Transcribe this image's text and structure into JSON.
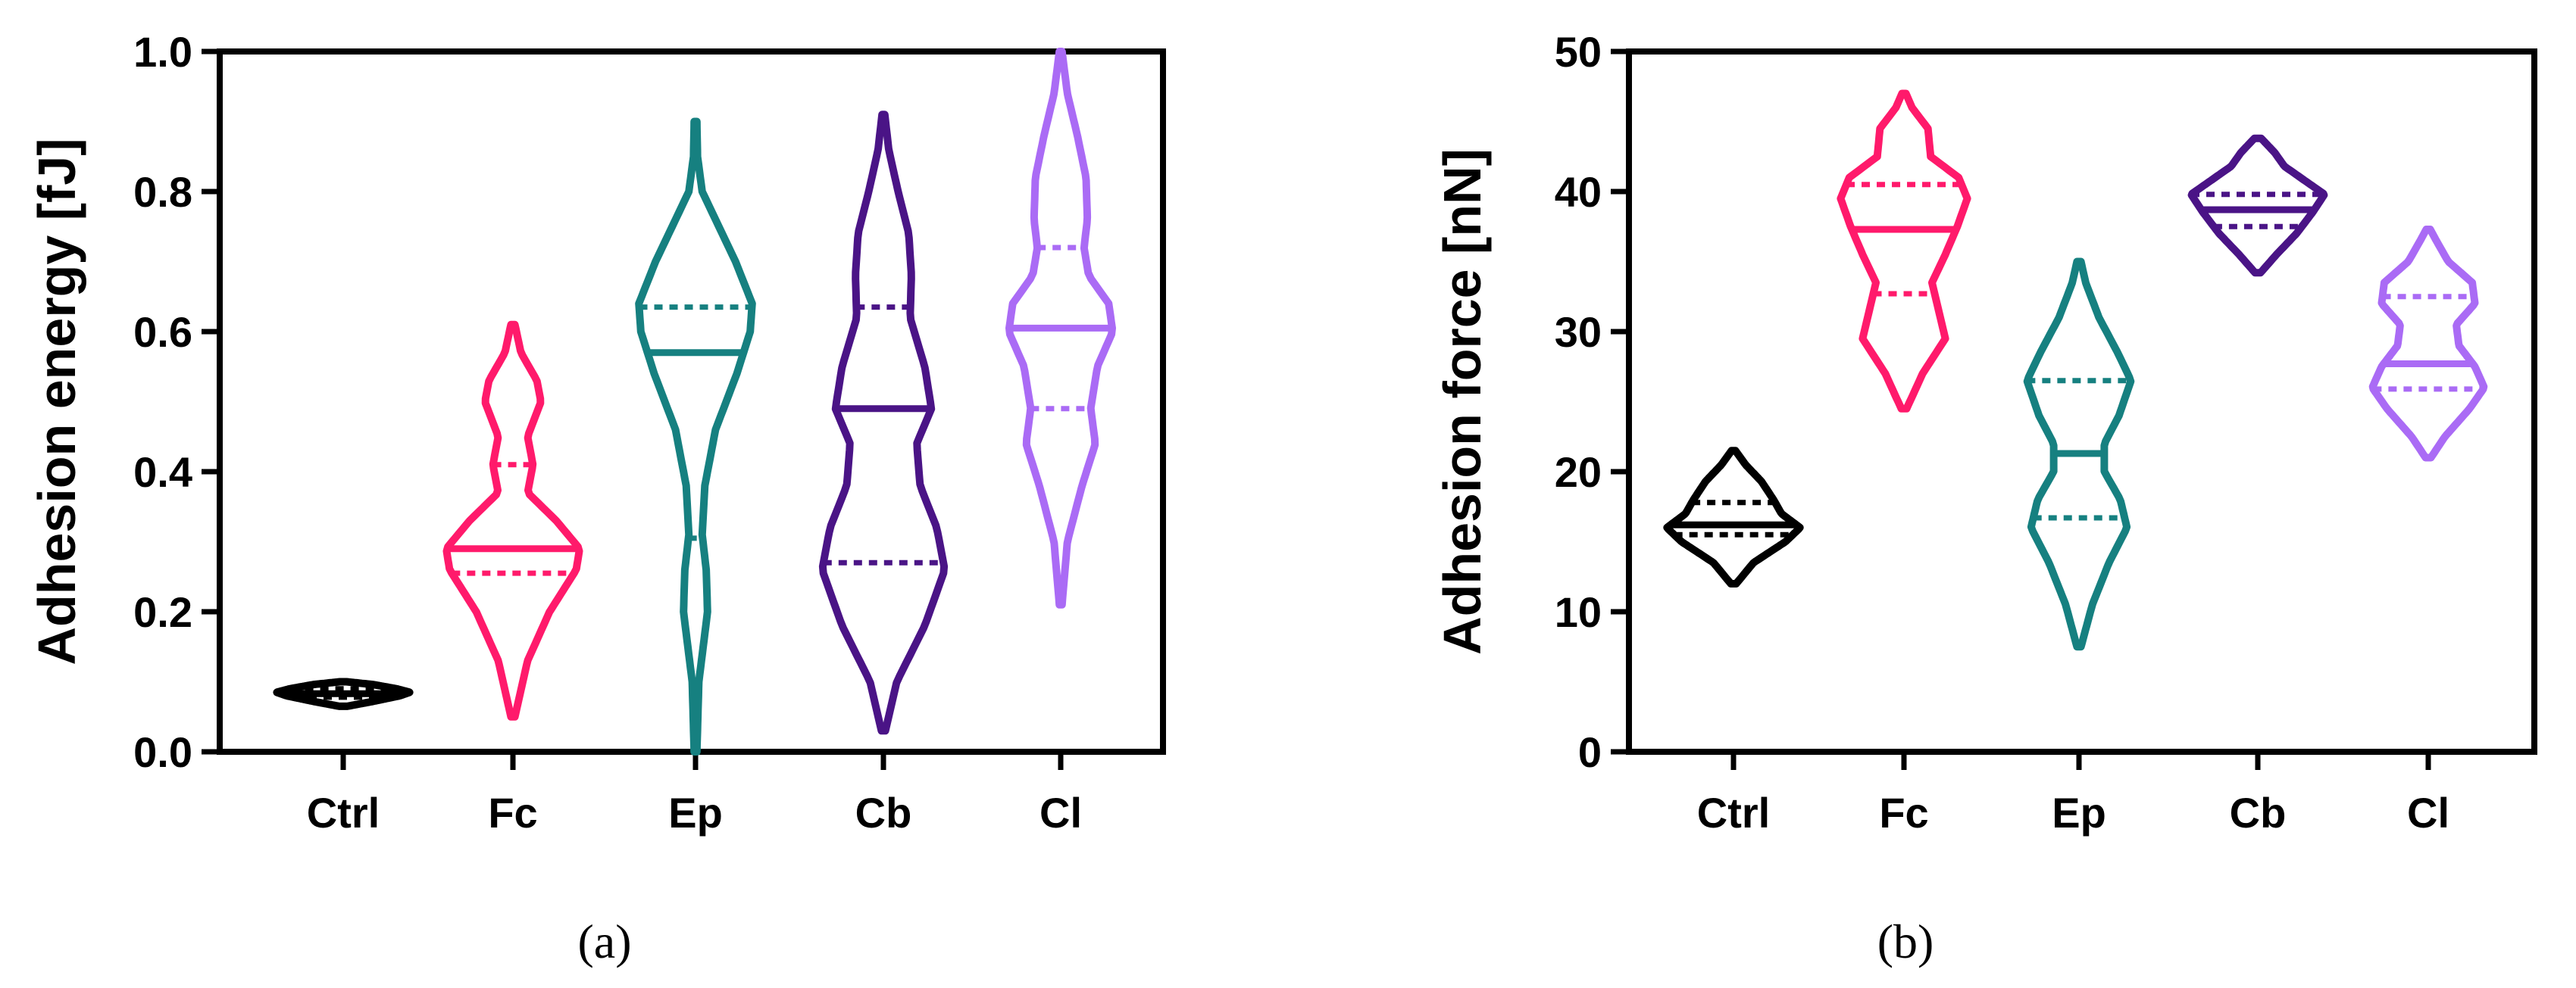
{
  "panel_labels": [
    "(a)",
    "(b)"
  ],
  "chart_data": [
    {
      "type": "violin",
      "panel": "(a)",
      "title": "",
      "xlabel": "",
      "ylabel": "Adhesion energy [fJ]",
      "ylim": [
        0,
        1.0
      ],
      "yticks": [
        "0.0",
        "0.2",
        "0.4",
        "0.6",
        "0.8",
        "1.0"
      ],
      "grid": false,
      "categories": [
        "Ctrl",
        "Fc",
        "Ep",
        "Cb",
        "Cl"
      ],
      "series": [
        {
          "category": "Ctrl",
          "color": "#000000",
          "min": 0.065,
          "q1": 0.078,
          "median": 0.083,
          "q3": 0.09,
          "max": 0.1,
          "profile": [
            [
              0.065,
              0.06
            ],
            [
              0.072,
              0.45
            ],
            [
              0.08,
              0.85
            ],
            [
              0.085,
              1.0
            ],
            [
              0.09,
              0.8
            ],
            [
              0.096,
              0.45
            ],
            [
              0.1,
              0.05
            ]
          ]
        },
        {
          "category": "Fc",
          "color": "#ff1a6b",
          "min": 0.05,
          "q1": 0.255,
          "median": 0.29,
          "q3": 0.41,
          "max": 0.61,
          "profile": [
            [
              0.05,
              0.03
            ],
            [
              0.13,
              0.22
            ],
            [
              0.2,
              0.55
            ],
            [
              0.26,
              0.95
            ],
            [
              0.29,
              1.0
            ],
            [
              0.33,
              0.65
            ],
            [
              0.37,
              0.22
            ],
            [
              0.41,
              0.3
            ],
            [
              0.45,
              0.22
            ],
            [
              0.5,
              0.42
            ],
            [
              0.53,
              0.36
            ],
            [
              0.57,
              0.12
            ],
            [
              0.61,
              0.03
            ]
          ]
        },
        {
          "category": "Ep",
          "color": "#168080",
          "min": 0.0,
          "q1": 0.305,
          "median": 0.57,
          "q3": 0.635,
          "max": 0.9,
          "profile": [
            [
              0.0,
              0.02
            ],
            [
              0.1,
              0.05
            ],
            [
              0.2,
              0.18
            ],
            [
              0.26,
              0.16
            ],
            [
              0.31,
              0.1
            ],
            [
              0.38,
              0.14
            ],
            [
              0.46,
              0.3
            ],
            [
              0.54,
              0.62
            ],
            [
              0.6,
              0.82
            ],
            [
              0.64,
              0.85
            ],
            [
              0.7,
              0.6
            ],
            [
              0.76,
              0.3
            ],
            [
              0.8,
              0.1
            ],
            [
              0.85,
              0.03
            ],
            [
              0.9,
              0.02
            ]
          ]
        },
        {
          "category": "Cb",
          "color": "#4a1486",
          "min": 0.03,
          "q1": 0.27,
          "median": 0.49,
          "q3": 0.635,
          "max": 0.91,
          "profile": [
            [
              0.03,
              0.03
            ],
            [
              0.1,
              0.2
            ],
            [
              0.18,
              0.62
            ],
            [
              0.26,
              0.92
            ],
            [
              0.32,
              0.8
            ],
            [
              0.38,
              0.55
            ],
            [
              0.44,
              0.5
            ],
            [
              0.49,
              0.72
            ],
            [
              0.55,
              0.62
            ],
            [
              0.62,
              0.4
            ],
            [
              0.68,
              0.42
            ],
            [
              0.74,
              0.38
            ],
            [
              0.8,
              0.22
            ],
            [
              0.86,
              0.08
            ],
            [
              0.91,
              0.02
            ]
          ]
        },
        {
          "category": "Cl",
          "color": "#aa6bf5",
          "min": 0.21,
          "q1": 0.49,
          "median": 0.605,
          "q3": 0.72,
          "max": 1.0,
          "profile": [
            [
              0.21,
              0.02
            ],
            [
              0.3,
              0.1
            ],
            [
              0.38,
              0.32
            ],
            [
              0.44,
              0.52
            ],
            [
              0.49,
              0.45
            ],
            [
              0.55,
              0.55
            ],
            [
              0.6,
              0.78
            ],
            [
              0.64,
              0.72
            ],
            [
              0.68,
              0.42
            ],
            [
              0.72,
              0.35
            ],
            [
              0.76,
              0.4
            ],
            [
              0.82,
              0.38
            ],
            [
              0.88,
              0.25
            ],
            [
              0.94,
              0.1
            ],
            [
              1.0,
              0.02
            ]
          ]
        }
      ]
    },
    {
      "type": "violin",
      "panel": "(b)",
      "title": "",
      "xlabel": "",
      "ylabel": "Adhesion force [nN]",
      "ylim": [
        0,
        50
      ],
      "yticks": [
        "0",
        "10",
        "20",
        "30",
        "40",
        "50"
      ],
      "grid": false,
      "categories": [
        "Ctrl",
        "Fc",
        "Ep",
        "Cb",
        "Cl"
      ],
      "series": [
        {
          "category": "Ctrl",
          "color": "#000000",
          "min": 12,
          "q1": 15.5,
          "median": 16.2,
          "q3": 17.8,
          "max": 21.5,
          "profile": [
            [
              12,
              0.04
            ],
            [
              13.5,
              0.3
            ],
            [
              15,
              0.78
            ],
            [
              16,
              1.0
            ],
            [
              17,
              0.72
            ],
            [
              18,
              0.6
            ],
            [
              19.3,
              0.42
            ],
            [
              20.5,
              0.18
            ],
            [
              21.5,
              0.03
            ]
          ]
        },
        {
          "category": "Fc",
          "color": "#ff1a6b",
          "min": 24.5,
          "q1": 32.7,
          "median": 37.3,
          "q3": 40.5,
          "max": 47,
          "profile": [
            [
              24.5,
              0.04
            ],
            [
              27,
              0.28
            ],
            [
              29.5,
              0.62
            ],
            [
              31.5,
              0.52
            ],
            [
              33.5,
              0.42
            ],
            [
              35.5,
              0.62
            ],
            [
              37.5,
              0.8
            ],
            [
              39.5,
              0.95
            ],
            [
              41,
              0.82
            ],
            [
              42.5,
              0.4
            ],
            [
              44.5,
              0.36
            ],
            [
              46,
              0.12
            ],
            [
              47,
              0.03
            ]
          ]
        },
        {
          "category": "Ep",
          "color": "#168080",
          "min": 7.5,
          "q1": 16.7,
          "median": 21.3,
          "q3": 26.5,
          "max": 35,
          "profile": [
            [
              7.5,
              0.03
            ],
            [
              10.5,
              0.2
            ],
            [
              13.5,
              0.45
            ],
            [
              16,
              0.72
            ],
            [
              18,
              0.62
            ],
            [
              20,
              0.38
            ],
            [
              22,
              0.38
            ],
            [
              24,
              0.6
            ],
            [
              26.5,
              0.78
            ],
            [
              28.5,
              0.58
            ],
            [
              31,
              0.3
            ],
            [
              33.5,
              0.1
            ],
            [
              35,
              0.03
            ]
          ]
        },
        {
          "category": "Cb",
          "color": "#4a1486",
          "min": 34.2,
          "q1": 37.5,
          "median": 38.7,
          "q3": 39.8,
          "max": 43.8,
          "profile": [
            [
              34.2,
              0.04
            ],
            [
              35.5,
              0.28
            ],
            [
              37,
              0.58
            ],
            [
              38.5,
              0.82
            ],
            [
              39.8,
              1.0
            ],
            [
              40.8,
              0.7
            ],
            [
              41.8,
              0.4
            ],
            [
              42.8,
              0.25
            ],
            [
              43.8,
              0.05
            ]
          ]
        },
        {
          "category": "Cl",
          "color": "#aa6bf5",
          "min": 21,
          "q1": 25.9,
          "median": 27.7,
          "q3": 32.5,
          "max": 37.3,
          "profile": [
            [
              21,
              0.04
            ],
            [
              22.5,
              0.25
            ],
            [
              24.5,
              0.62
            ],
            [
              26,
              0.84
            ],
            [
              27.5,
              0.7
            ],
            [
              29,
              0.46
            ],
            [
              30.5,
              0.42
            ],
            [
              32,
              0.7
            ],
            [
              33.5,
              0.66
            ],
            [
              35,
              0.3
            ],
            [
              36.5,
              0.12
            ],
            [
              37.3,
              0.03
            ]
          ]
        }
      ]
    }
  ]
}
